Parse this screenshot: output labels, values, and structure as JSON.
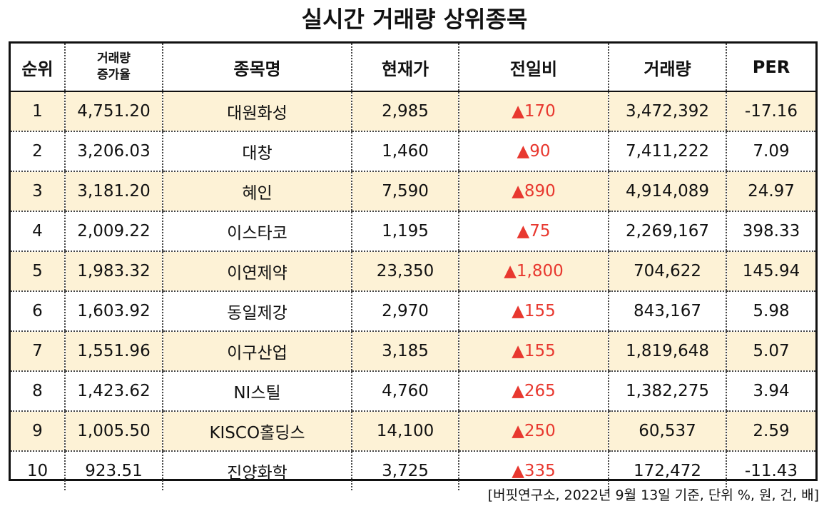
{
  "title": "실시간 거래량 상위종목",
  "columns": {
    "rank": "순위",
    "volume_increase_line1": "거래량",
    "volume_increase_line2": "증가율",
    "name": "종목명",
    "price": "현재가",
    "change": "전일비",
    "volume": "거래량",
    "per": "PER"
  },
  "rows": [
    {
      "rank": "1",
      "increase": "4,751.20",
      "name": "대원화성",
      "price": "2,985",
      "change": "▲170",
      "volume": "3,472,392",
      "per": "-17.16"
    },
    {
      "rank": "2",
      "increase": "3,206.03",
      "name": "대창",
      "price": "1,460",
      "change": "▲90",
      "volume": "7,411,222",
      "per": "7.09"
    },
    {
      "rank": "3",
      "increase": "3,181.20",
      "name": "혜인",
      "price": "7,590",
      "change": "▲890",
      "volume": "4,914,089",
      "per": "24.97"
    },
    {
      "rank": "4",
      "increase": "2,009.22",
      "name": "이스타코",
      "price": "1,195",
      "change": "▲75",
      "volume": "2,269,167",
      "per": "398.33"
    },
    {
      "rank": "5",
      "increase": "1,983.32",
      "name": "이연제약",
      "price": "23,350",
      "change": "▲1,800",
      "volume": "704,622",
      "per": "145.94"
    },
    {
      "rank": "6",
      "increase": "1,603.92",
      "name": "동일제강",
      "price": "2,970",
      "change": "▲155",
      "volume": "843,167",
      "per": "5.98"
    },
    {
      "rank": "7",
      "increase": "1,551.96",
      "name": "이구산업",
      "price": "3,185",
      "change": "▲155",
      "volume": "1,819,648",
      "per": "5.07"
    },
    {
      "rank": "8",
      "increase": "1,423.62",
      "name": "NI스틸",
      "price": "4,760",
      "change": "▲265",
      "volume": "1,382,275",
      "per": "3.94"
    },
    {
      "rank": "9",
      "increase": "1,005.50",
      "name": "KISCO홀딩스",
      "price": "14,100",
      "change": "▲250",
      "volume": "60,537",
      "per": "2.59"
    },
    {
      "rank": "10",
      "increase": "923.51",
      "name": "진양화학",
      "price": "3,725",
      "change": "▲335",
      "volume": "172,472",
      "per": "-11.43"
    }
  ],
  "footnote": "[버핏연구소, 2022년 9월 13일 기준, 단위 %, 원, 건, 배]",
  "colors": {
    "highlight_row": "#fdf2d6",
    "up": "#e8382f"
  }
}
